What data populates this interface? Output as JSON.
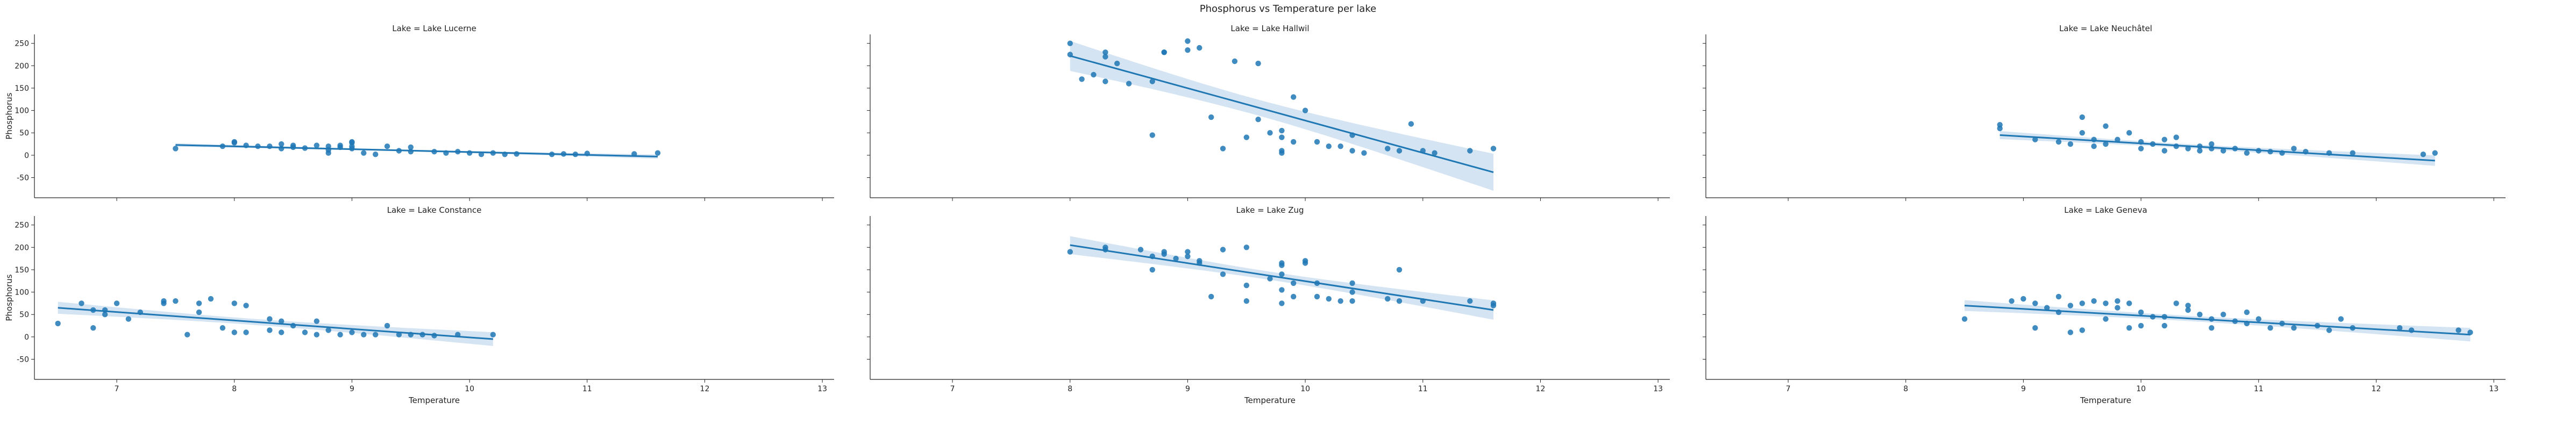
{
  "figure": {
    "suptitle": "Phosphorus vs Temperature per lake",
    "accent_color": "#1f77b4",
    "band_color": "#c6dbef"
  },
  "chart_data": {
    "type": "scatter",
    "title": "Phosphorus vs Temperature per lake",
    "xlabel": "Temperature",
    "ylabel": "Phosphorus",
    "xlim": [
      6.3,
      13.1
    ],
    "ylim": [
      -95,
      270
    ],
    "xticks": [
      7,
      8,
      9,
      10,
      11,
      12,
      13
    ],
    "yticks": [
      -50,
      0,
      50,
      100,
      150,
      200,
      250
    ],
    "grid": false,
    "facet_titles": [
      "Lake = Lake Lucerne",
      "Lake = Lake Hallwil",
      "Lake = Lake Neuchâtel",
      "Lake = Lake Constance",
      "Lake = Lake Zug",
      "Lake = Lake Geneva"
    ],
    "facets": [
      {
        "name": "Lake Lucerne",
        "points": [
          [
            7.5,
            15
          ],
          [
            7.9,
            20
          ],
          [
            8.0,
            28
          ],
          [
            8.0,
            30
          ],
          [
            8.1,
            22
          ],
          [
            8.2,
            20
          ],
          [
            8.3,
            20
          ],
          [
            8.4,
            25
          ],
          [
            8.4,
            15
          ],
          [
            8.5,
            22
          ],
          [
            8.5,
            18
          ],
          [
            8.6,
            16
          ],
          [
            8.7,
            22
          ],
          [
            8.8,
            12
          ],
          [
            8.8,
            20
          ],
          [
            8.8,
            5
          ],
          [
            8.9,
            18
          ],
          [
            8.9,
            22
          ],
          [
            9.0,
            20
          ],
          [
            9.0,
            15
          ],
          [
            9.0,
            28
          ],
          [
            9.0,
            30
          ],
          [
            9.1,
            5
          ],
          [
            9.2,
            2
          ],
          [
            9.3,
            20
          ],
          [
            9.4,
            10
          ],
          [
            9.5,
            18
          ],
          [
            9.5,
            8
          ],
          [
            9.7,
            8
          ],
          [
            9.8,
            5
          ],
          [
            9.9,
            8
          ],
          [
            10.0,
            5
          ],
          [
            10.1,
            2
          ],
          [
            10.2,
            5
          ],
          [
            10.3,
            2
          ],
          [
            10.4,
            3
          ],
          [
            10.7,
            2
          ],
          [
            10.8,
            3
          ],
          [
            10.9,
            2
          ],
          [
            11.0,
            4
          ],
          [
            11.4,
            3
          ],
          [
            11.6,
            5
          ]
        ],
        "regression": {
          "x": [
            7.5,
            11.6
          ],
          "y": [
            23,
            -3
          ]
        }
      },
      {
        "name": "Lake Hallwil",
        "points": [
          [
            8.0,
            250
          ],
          [
            8.0,
            225
          ],
          [
            8.1,
            170
          ],
          [
            8.2,
            180
          ],
          [
            8.3,
            230
          ],
          [
            8.3,
            220
          ],
          [
            8.3,
            165
          ],
          [
            8.4,
            205
          ],
          [
            8.5,
            160
          ],
          [
            8.7,
            165
          ],
          [
            8.7,
            45
          ],
          [
            8.8,
            230
          ],
          [
            8.8,
            230
          ],
          [
            9.0,
            255
          ],
          [
            9.0,
            235
          ],
          [
            9.1,
            240
          ],
          [
            9.2,
            85
          ],
          [
            9.3,
            15
          ],
          [
            9.4,
            210
          ],
          [
            9.5,
            40
          ],
          [
            9.6,
            205
          ],
          [
            9.6,
            80
          ],
          [
            9.7,
            50
          ],
          [
            9.8,
            55
          ],
          [
            9.8,
            5
          ],
          [
            9.8,
            40
          ],
          [
            9.8,
            10
          ],
          [
            9.9,
            30
          ],
          [
            9.9,
            130
          ],
          [
            10.0,
            100
          ],
          [
            10.1,
            30
          ],
          [
            10.2,
            20
          ],
          [
            10.3,
            20
          ],
          [
            10.4,
            45
          ],
          [
            10.4,
            10
          ],
          [
            10.5,
            5
          ],
          [
            10.7,
            15
          ],
          [
            10.8,
            10
          ],
          [
            10.9,
            70
          ],
          [
            11.0,
            10
          ],
          [
            11.1,
            5
          ],
          [
            11.4,
            10
          ],
          [
            11.6,
            15
          ]
        ],
        "regression": {
          "x": [
            8.0,
            11.6
          ],
          "y": [
            222,
            -38
          ]
        }
      },
      {
        "name": "Lake Neuchâtel",
        "points": [
          [
            8.8,
            68
          ],
          [
            8.8,
            60
          ],
          [
            9.1,
            35
          ],
          [
            9.3,
            30
          ],
          [
            9.4,
            25
          ],
          [
            9.5,
            85
          ],
          [
            9.5,
            50
          ],
          [
            9.6,
            35
          ],
          [
            9.6,
            20
          ],
          [
            9.7,
            65
          ],
          [
            9.7,
            25
          ],
          [
            9.8,
            35
          ],
          [
            9.9,
            50
          ],
          [
            10.0,
            15
          ],
          [
            10.0,
            30
          ],
          [
            10.1,
            25
          ],
          [
            10.2,
            35
          ],
          [
            10.2,
            10
          ],
          [
            10.3,
            40
          ],
          [
            10.3,
            20
          ],
          [
            10.4,
            15
          ],
          [
            10.5,
            20
          ],
          [
            10.5,
            10
          ],
          [
            10.6,
            25
          ],
          [
            10.6,
            15
          ],
          [
            10.7,
            10
          ],
          [
            10.8,
            15
          ],
          [
            10.9,
            5
          ],
          [
            11.0,
            10
          ],
          [
            11.1,
            8
          ],
          [
            11.2,
            5
          ],
          [
            11.3,
            15
          ],
          [
            11.4,
            8
          ],
          [
            11.6,
            5
          ],
          [
            11.8,
            5
          ],
          [
            12.4,
            2
          ],
          [
            12.5,
            5
          ]
        ],
        "regression": {
          "x": [
            8.8,
            12.5
          ],
          "y": [
            45,
            -12
          ]
        }
      },
      {
        "name": "Lake Constance",
        "points": [
          [
            6.5,
            30
          ],
          [
            6.7,
            75
          ],
          [
            6.8,
            60
          ],
          [
            6.8,
            20
          ],
          [
            6.9,
            60
          ],
          [
            6.9,
            50
          ],
          [
            7.0,
            75
          ],
          [
            7.1,
            40
          ],
          [
            7.2,
            55
          ],
          [
            7.4,
            75
          ],
          [
            7.4,
            80
          ],
          [
            7.5,
            80
          ],
          [
            7.6,
            5
          ],
          [
            7.7,
            75
          ],
          [
            7.7,
            55
          ],
          [
            7.8,
            85
          ],
          [
            7.9,
            20
          ],
          [
            8.0,
            10
          ],
          [
            8.0,
            75
          ],
          [
            8.1,
            70
          ],
          [
            8.1,
            10
          ],
          [
            8.3,
            40
          ],
          [
            8.3,
            15
          ],
          [
            8.4,
            10
          ],
          [
            8.4,
            35
          ],
          [
            8.5,
            25
          ],
          [
            8.6,
            10
          ],
          [
            8.7,
            5
          ],
          [
            8.7,
            35
          ],
          [
            8.8,
            15
          ],
          [
            8.9,
            5
          ],
          [
            9.0,
            10
          ],
          [
            9.1,
            5
          ],
          [
            9.2,
            5
          ],
          [
            9.3,
            25
          ],
          [
            9.4,
            5
          ],
          [
            9.5,
            5
          ],
          [
            9.6,
            5
          ],
          [
            9.7,
            3
          ],
          [
            9.9,
            5
          ],
          [
            10.2,
            5
          ]
        ],
        "regression": {
          "x": [
            6.5,
            10.2
          ],
          "y": [
            65,
            -5
          ]
        }
      },
      {
        "name": "Lake Zug",
        "points": [
          [
            8.0,
            190
          ],
          [
            8.3,
            200
          ],
          [
            8.3,
            195
          ],
          [
            8.6,
            195
          ],
          [
            8.7,
            180
          ],
          [
            8.7,
            150
          ],
          [
            8.8,
            185
          ],
          [
            8.8,
            190
          ],
          [
            8.9,
            175
          ],
          [
            9.0,
            180
          ],
          [
            9.0,
            190
          ],
          [
            9.1,
            170
          ],
          [
            9.1,
            165
          ],
          [
            9.2,
            90
          ],
          [
            9.3,
            195
          ],
          [
            9.3,
            140
          ],
          [
            9.5,
            200
          ],
          [
            9.5,
            115
          ],
          [
            9.5,
            80
          ],
          [
            9.7,
            130
          ],
          [
            9.8,
            165
          ],
          [
            9.8,
            160
          ],
          [
            9.8,
            140
          ],
          [
            9.8,
            105
          ],
          [
            9.8,
            75
          ],
          [
            9.9,
            120
          ],
          [
            9.9,
            90
          ],
          [
            10.0,
            165
          ],
          [
            10.0,
            170
          ],
          [
            10.1,
            120
          ],
          [
            10.1,
            90
          ],
          [
            10.2,
            85
          ],
          [
            10.3,
            80
          ],
          [
            10.4,
            120
          ],
          [
            10.4,
            100
          ],
          [
            10.4,
            80
          ],
          [
            10.7,
            85
          ],
          [
            10.8,
            150
          ],
          [
            10.8,
            80
          ],
          [
            11.0,
            80
          ],
          [
            11.4,
            80
          ],
          [
            11.6,
            75
          ],
          [
            11.6,
            70
          ]
        ],
        "regression": {
          "x": [
            8.0,
            11.6
          ],
          "y": [
            205,
            60
          ]
        }
      },
      {
        "name": "Lake Geneva",
        "points": [
          [
            8.5,
            40
          ],
          [
            8.9,
            80
          ],
          [
            9.0,
            85
          ],
          [
            9.1,
            75
          ],
          [
            9.1,
            20
          ],
          [
            9.2,
            65
          ],
          [
            9.3,
            90
          ],
          [
            9.3,
            55
          ],
          [
            9.4,
            10
          ],
          [
            9.4,
            70
          ],
          [
            9.5,
            15
          ],
          [
            9.5,
            75
          ],
          [
            9.6,
            80
          ],
          [
            9.7,
            75
          ],
          [
            9.7,
            40
          ],
          [
            9.8,
            65
          ],
          [
            9.8,
            80
          ],
          [
            9.9,
            75
          ],
          [
            9.9,
            20
          ],
          [
            10.0,
            25
          ],
          [
            10.0,
            55
          ],
          [
            10.1,
            45
          ],
          [
            10.2,
            45
          ],
          [
            10.2,
            25
          ],
          [
            10.3,
            75
          ],
          [
            10.4,
            60
          ],
          [
            10.4,
            70
          ],
          [
            10.5,
            50
          ],
          [
            10.6,
            40
          ],
          [
            10.6,
            20
          ],
          [
            10.7,
            50
          ],
          [
            10.8,
            35
          ],
          [
            10.9,
            30
          ],
          [
            10.9,
            55
          ],
          [
            11.0,
            40
          ],
          [
            11.1,
            20
          ],
          [
            11.2,
            30
          ],
          [
            11.3,
            20
          ],
          [
            11.5,
            25
          ],
          [
            11.6,
            15
          ],
          [
            11.7,
            40
          ],
          [
            11.8,
            20
          ],
          [
            12.2,
            20
          ],
          [
            12.3,
            15
          ],
          [
            12.7,
            15
          ],
          [
            12.8,
            10
          ]
        ],
        "regression": {
          "x": [
            8.5,
            12.8
          ],
          "y": [
            70,
            5
          ]
        }
      }
    ]
  }
}
